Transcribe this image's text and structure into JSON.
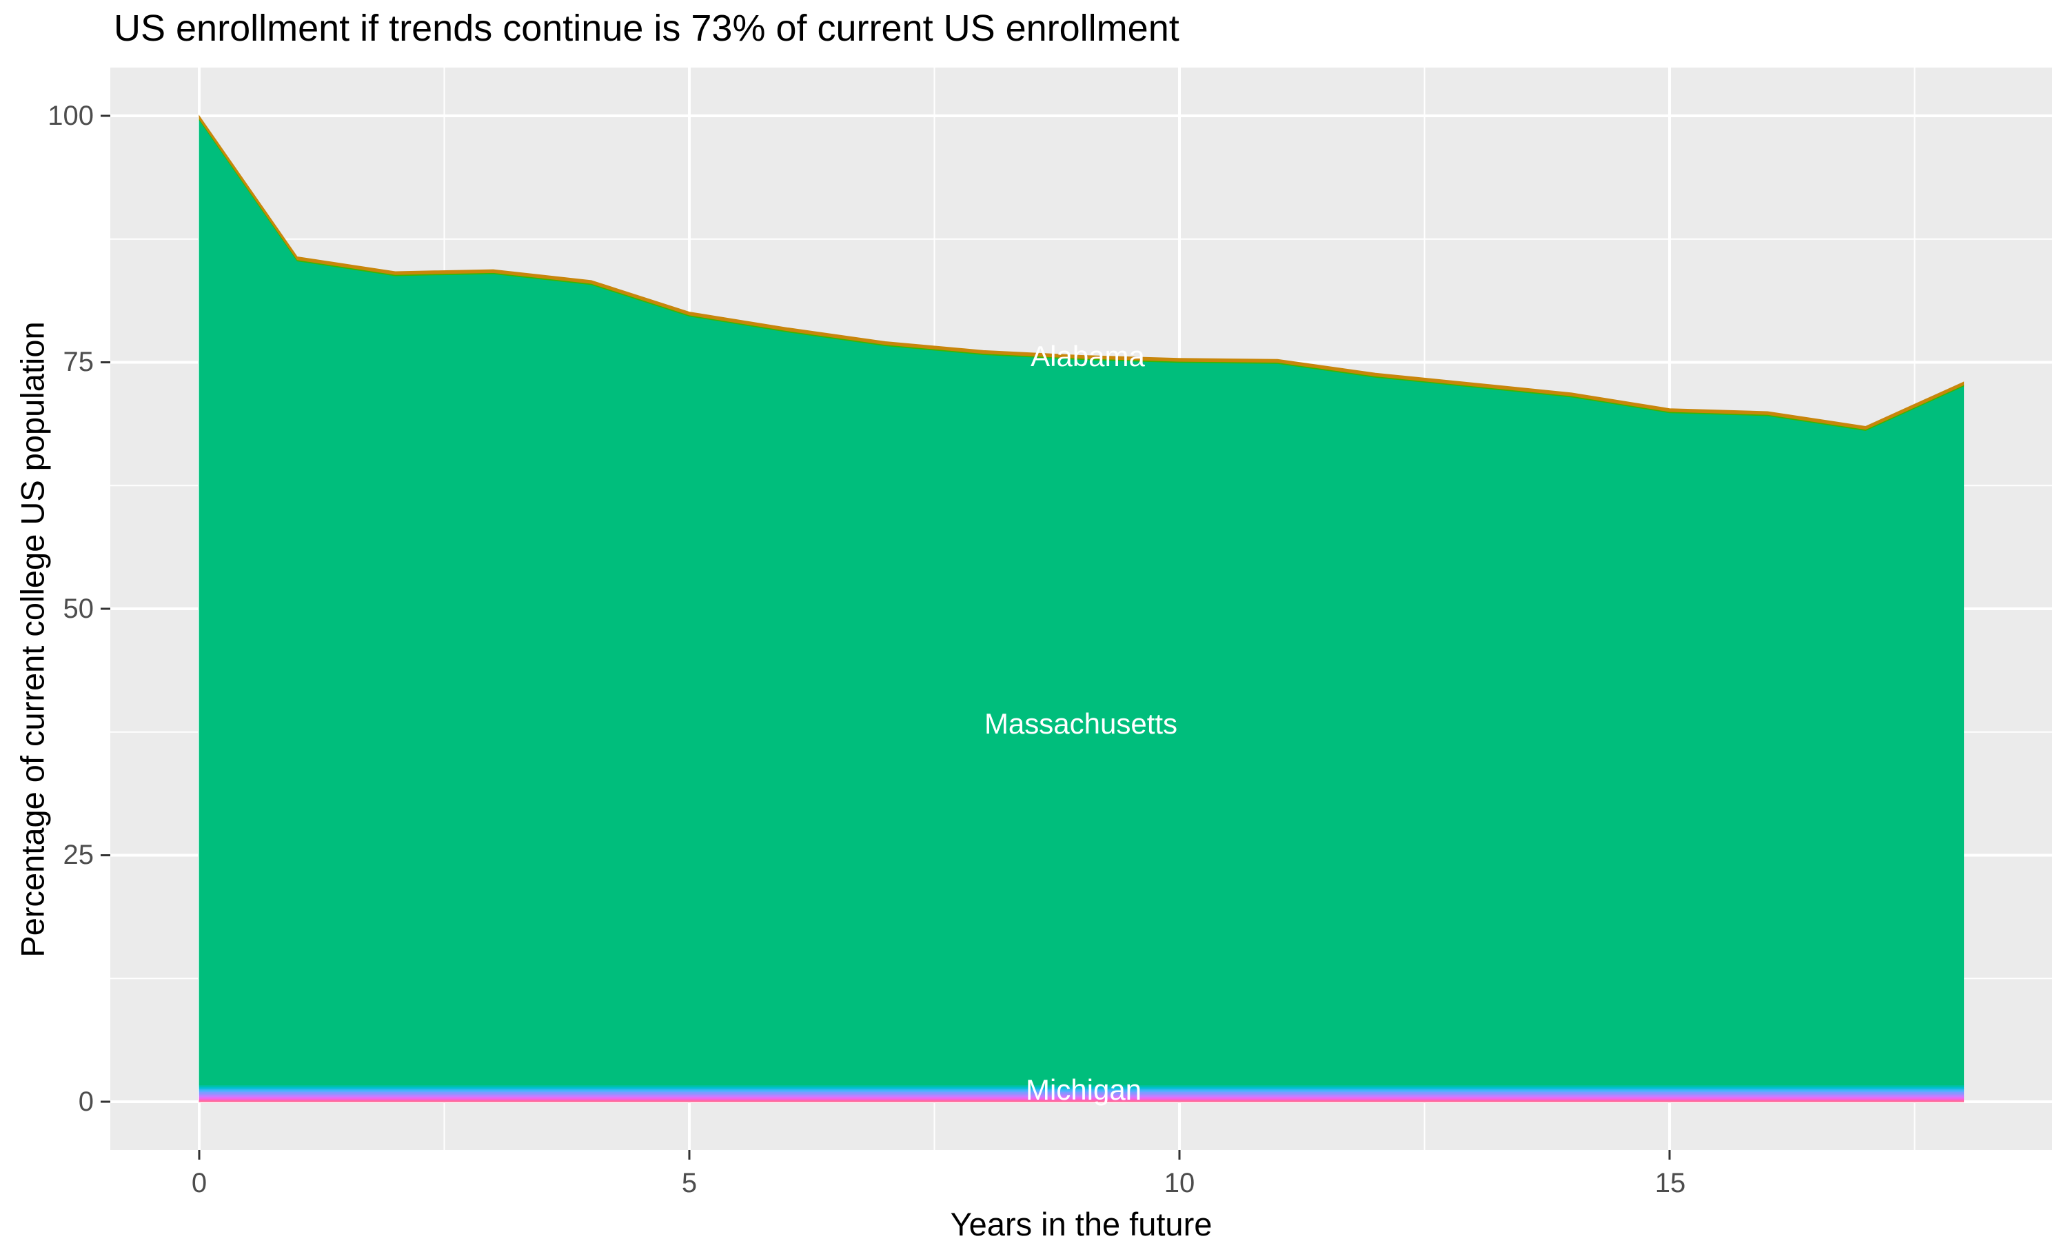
{
  "chart_data": {
    "type": "area",
    "stacked": true,
    "title": "US enrollment if trends continue is 73% of current US enrollment",
    "xlabel": "Years in the future",
    "ylabel": "Percentage of current college US population",
    "x": [
      0,
      1,
      2,
      3,
      4,
      5,
      6,
      7,
      8,
      9,
      10,
      11,
      12,
      13,
      14,
      15,
      16,
      17,
      18
    ],
    "x_range": [
      0,
      18
    ],
    "y_range": [
      0,
      100
    ],
    "x_tick_values": [
      0,
      5,
      10,
      15
    ],
    "x_tick_labels": [
      "0",
      "5",
      "10",
      "15"
    ],
    "x_minor_ticks": [
      2.5,
      7.5,
      12.5,
      17.5
    ],
    "y_tick_values": [
      100,
      75,
      50,
      25,
      0
    ],
    "y_tick_labels": [
      "100",
      "75",
      "50",
      "25",
      "0"
    ],
    "y_minor_ticks": [
      87.5,
      62.5,
      37.5,
      12.5
    ],
    "grid": "white major+minor gridlines on gray panel",
    "legend": "none",
    "totals": [
      100,
      85.7,
      84.2,
      84.4,
      83.3,
      80.1,
      78.5,
      77.1,
      76.2,
      75.7,
      75.4,
      75.3,
      73.9,
      72.9,
      71.9,
      70.3,
      70.0,
      68.5,
      73.0
    ],
    "series": [
      {
        "name": "Alabama",
        "color": "#C8860B",
        "thickness": 0.3
      },
      {
        "name": "",
        "color": "#39B600",
        "thickness": 0.12
      },
      {
        "name": "Massachusetts",
        "color": "#00BE7C",
        "values": [
          97.88,
          83.58,
          82.08,
          82.28,
          81.18,
          77.98,
          76.38,
          74.98,
          74.08,
          73.58,
          73.28,
          73.18,
          71.78,
          70.78,
          69.78,
          68.18,
          67.88,
          66.38,
          70.88
        ]
      },
      {
        "name": "Michigan",
        "color": "#00C0A8",
        "thickness": 0.17
      },
      {
        "name": "",
        "color": "#00BFD0",
        "thickness": 0.17
      },
      {
        "name": "",
        "color": "#2DB9EC",
        "thickness": 0.17
      },
      {
        "name": "",
        "color": "#57ADFF",
        "thickness": 0.17
      },
      {
        "name": "",
        "color": "#7C9BFF",
        "thickness": 0.17
      },
      {
        "name": "",
        "color": "#9E8CFF",
        "thickness": 0.17
      },
      {
        "name": "",
        "color": "#C77CFF",
        "thickness": 0.17
      },
      {
        "name": "",
        "color": "#E76BF3",
        "thickness": 0.17
      },
      {
        "name": "",
        "color": "#FB61CE",
        "thickness": 0.17
      },
      {
        "name": "",
        "color": "#FF6B9A",
        "thickness": 0.17
      }
    ],
    "area_labels": [
      {
        "text": "Alabama",
        "x": 9,
        "y": 75.7
      },
      {
        "text": "Massachusetts",
        "x": 9,
        "y": 38.3
      },
      {
        "text": "Michigan",
        "x": 9,
        "y": 1.2
      }
    ],
    "style": {
      "panel_bg": "#EBEBEB",
      "grid_color": "#FFFFFF",
      "tick_mark_color": "#333333",
      "tick_label_color": "#4D4D4D",
      "title_color": "#000000",
      "area_label_color": "#FFFFFF"
    }
  }
}
